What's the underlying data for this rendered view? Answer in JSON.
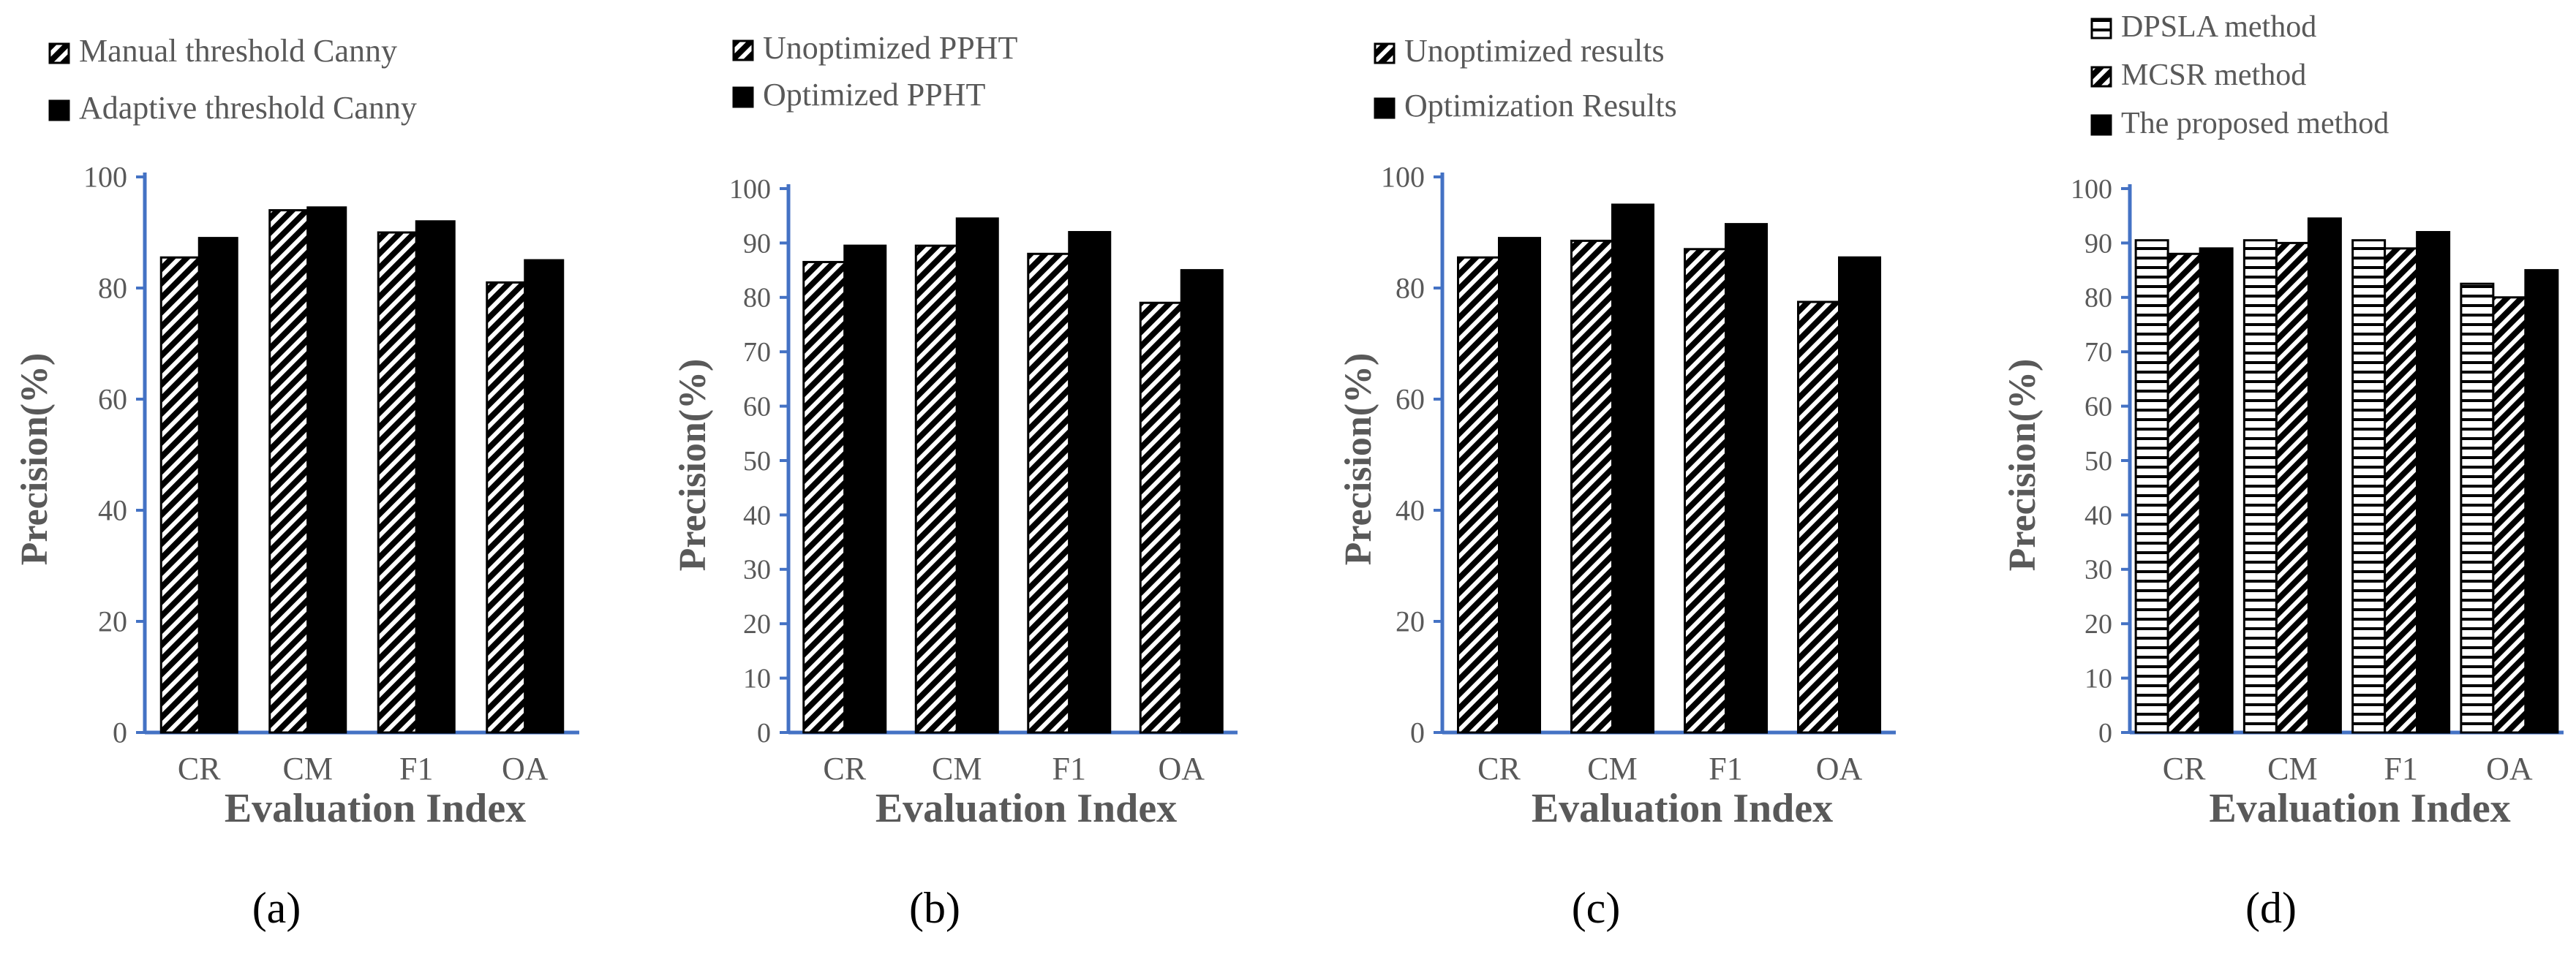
{
  "figure": {
    "panel_labels": [
      "(a)",
      "(b)",
      "(c)",
      "(d)"
    ]
  },
  "colors": {
    "axis": "#4472c4",
    "bar": "#000000",
    "text": "#595959",
    "label": "#000000"
  },
  "chart_data": [
    {
      "type": "bar",
      "panel": "(a)",
      "title": "",
      "xlabel": "Evaluation Index",
      "ylabel": "Precision(%)",
      "ylim": [
        0,
        100
      ],
      "yticks": [
        0,
        20,
        40,
        60,
        80,
        100
      ],
      "categories": [
        "CR",
        "CM",
        "F1",
        "OA"
      ],
      "legend_position": "top-left",
      "series": [
        {
          "name": "Manual threshold Canny",
          "pattern": "diagonal",
          "values": [
            85.5,
            94,
            90,
            81
          ]
        },
        {
          "name": "Adaptive threshold Canny",
          "pattern": "solid",
          "values": [
            89,
            94.5,
            92,
            85
          ]
        }
      ]
    },
    {
      "type": "bar",
      "panel": "(b)",
      "title": "",
      "xlabel": "Evaluation Index",
      "ylabel": "Precision(%)",
      "ylim": [
        0,
        100
      ],
      "yticks": [
        0,
        10,
        20,
        30,
        40,
        50,
        60,
        70,
        80,
        90,
        100
      ],
      "categories": [
        "CR",
        "CM",
        "F1",
        "OA"
      ],
      "legend_position": "top-left",
      "series": [
        {
          "name": "Unoptimized PPHT",
          "pattern": "diagonal",
          "values": [
            86.5,
            89.5,
            88,
            79
          ]
        },
        {
          "name": "Optimized PPHT",
          "pattern": "solid",
          "values": [
            89.5,
            94.5,
            92,
            85
          ]
        }
      ]
    },
    {
      "type": "bar",
      "panel": "(c)",
      "title": "",
      "xlabel": "Evaluation Index",
      "ylabel": "Precision(%)",
      "ylim": [
        0,
        100
      ],
      "yticks": [
        0,
        20,
        40,
        60,
        80,
        100
      ],
      "categories": [
        "CR",
        "CM",
        "F1",
        "OA"
      ],
      "legend_position": "top-left",
      "series": [
        {
          "name": "Unoptimized results",
          "pattern": "diagonal",
          "values": [
            85.5,
            88.5,
            87,
            77.5
          ]
        },
        {
          "name": "Optimization Results",
          "pattern": "solid",
          "values": [
            89,
            95,
            91.5,
            85.5
          ]
        }
      ]
    },
    {
      "type": "bar",
      "panel": "(d)",
      "title": "",
      "xlabel": "Evaluation Index",
      "ylabel": "Precision(%)",
      "ylim": [
        0,
        100
      ],
      "yticks": [
        0,
        10,
        20,
        30,
        40,
        50,
        60,
        70,
        80,
        90,
        100
      ],
      "categories": [
        "CR",
        "CM",
        "F1",
        "OA"
      ],
      "legend_position": "top-left",
      "series": [
        {
          "name": "DPSLA method",
          "pattern": "horizontal",
          "values": [
            90.5,
            90.5,
            90.5,
            82.5
          ]
        },
        {
          "name": "MCSR method",
          "pattern": "diagonal",
          "values": [
            88,
            90,
            89,
            80
          ]
        },
        {
          "name": "The proposed method",
          "pattern": "solid",
          "values": [
            89,
            94.5,
            92,
            85
          ]
        }
      ]
    }
  ]
}
